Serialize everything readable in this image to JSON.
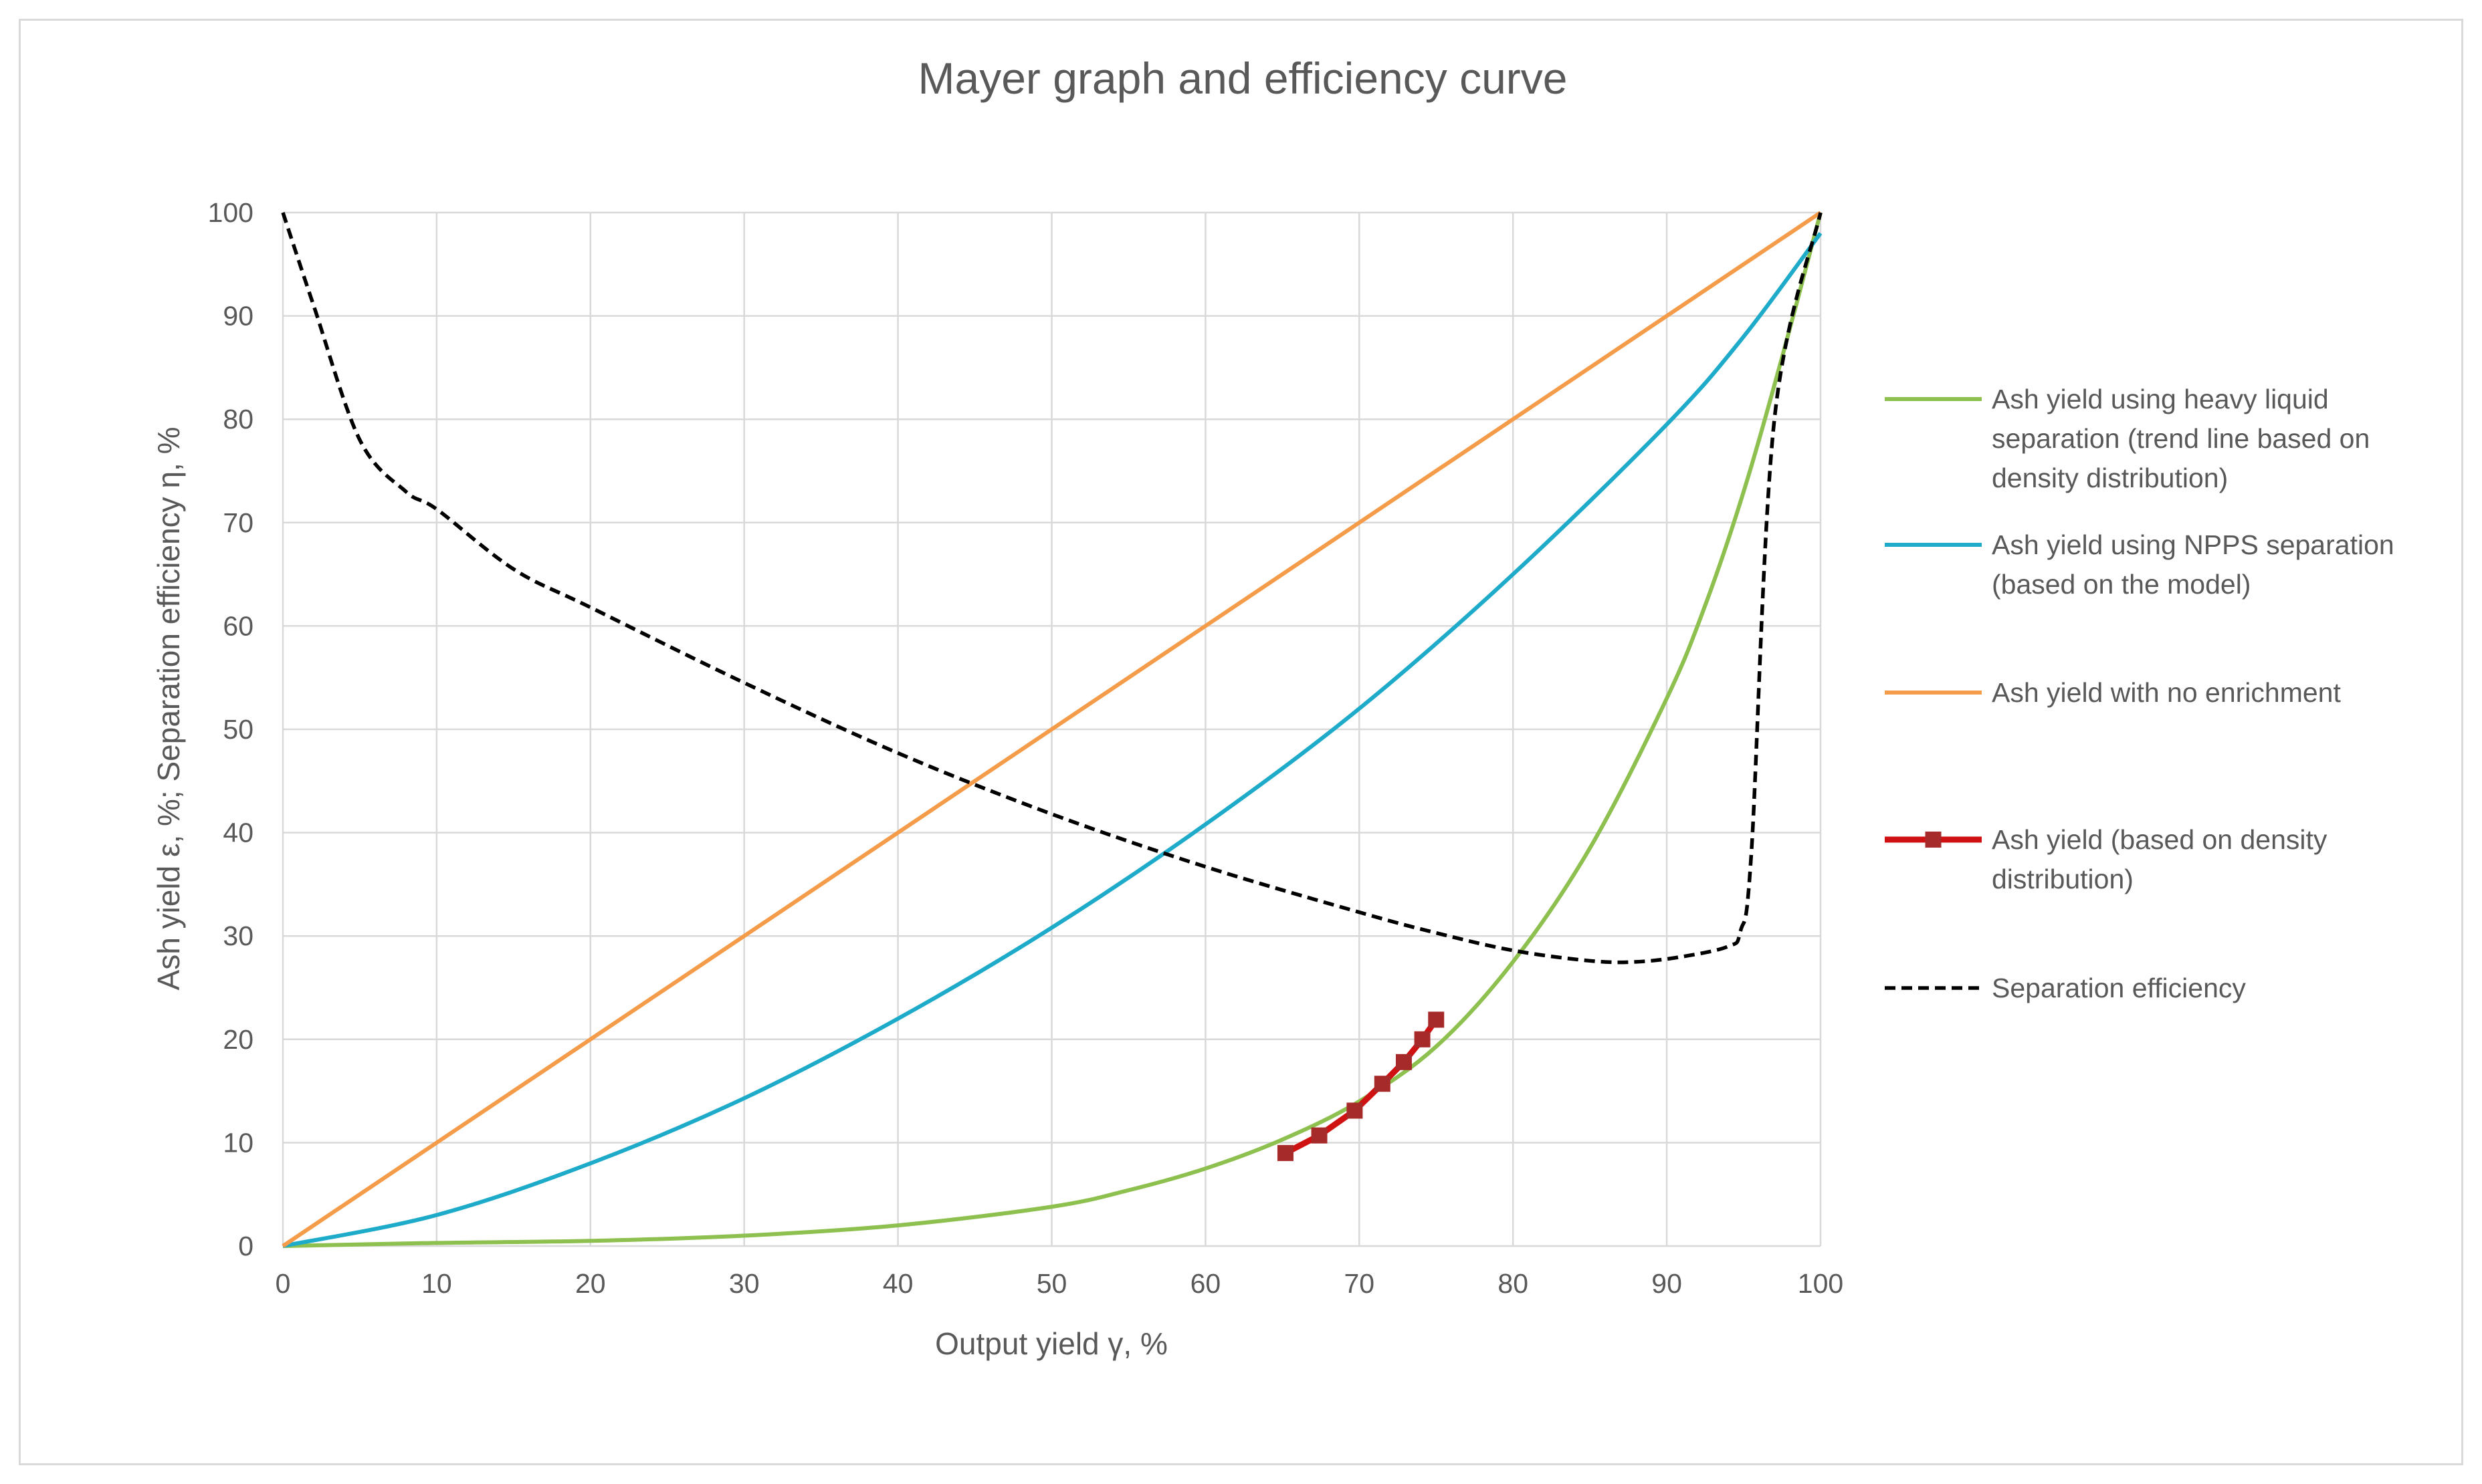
{
  "chart_data": {
    "type": "line",
    "title": "Mayer graph and efficiency curve",
    "xlabel": "Output yield γ, %",
    "ylabel": "Ash yield ε, %; Separation efficiency η, %",
    "xlim": [
      0,
      100
    ],
    "ylim": [
      0,
      100
    ],
    "x_ticks": [
      "0",
      "10",
      "20",
      "30",
      "40",
      "50",
      "60",
      "70",
      "80",
      "90",
      "100"
    ],
    "y_ticks": [
      "0",
      "10",
      "20",
      "30",
      "40",
      "50",
      "60",
      "70",
      "80",
      "90",
      "100"
    ],
    "grid": true,
    "legend_position": "right",
    "series": [
      {
        "name": "heavy",
        "legend_lines": [
          "Ash yield using heavy liquid",
          "separation (trend line based on",
          "density distribution)"
        ],
        "color": "#8dc04f",
        "style": "solid",
        "x": [
          0,
          10,
          20,
          30,
          40,
          50,
          55,
          60,
          65,
          70,
          75,
          80,
          85,
          90,
          92.5,
          95,
          97.5,
          100
        ],
        "y": [
          0,
          0.3,
          0.5,
          1,
          2,
          3.8,
          5.4,
          7.5,
          10.3,
          14,
          19.3,
          27.5,
          38.5,
          53,
          62,
          73,
          86,
          100
        ]
      },
      {
        "name": "npps",
        "legend_lines": [
          "Ash yield using NPPS separation",
          "(based on the model)"
        ],
        "color": "#1eabca",
        "style": "solid",
        "x": [
          0,
          10,
          20,
          30,
          40,
          50,
          60,
          70,
          80,
          90,
          95,
          100
        ],
        "y": [
          0,
          3,
          8,
          14.3,
          22,
          30.8,
          40.8,
          52,
          65,
          79.5,
          88,
          98
        ]
      },
      {
        "name": "noenrich",
        "legend_lines": [
          "Ash yield with no enrichment"
        ],
        "color": "#f59c4a",
        "style": "solid",
        "x": [
          0,
          100
        ],
        "y": [
          0,
          100
        ]
      },
      {
        "name": "density",
        "legend_lines": [
          "Ash yield (based on density",
          "distribution)"
        ],
        "color": "#cf1111",
        "marker_color": "#a62a2a",
        "style": "solid-markers",
        "x": [
          65.2,
          67.4,
          69.7,
          71.5,
          72.9,
          74.1,
          75
        ],
        "y": [
          9,
          10.7,
          13.1,
          15.7,
          17.8,
          20,
          21.9
        ]
      },
      {
        "name": "efficiency",
        "legend_lines": [
          "Separation efficiency"
        ],
        "color": "#000000",
        "style": "dashed",
        "x": [
          0,
          2,
          5,
          8,
          10,
          15,
          20,
          30,
          40,
          50,
          60,
          70,
          75,
          80,
          85,
          88,
          91,
          94,
          94.8,
          95.5,
          97,
          100
        ],
        "y": [
          100,
          91,
          78,
          73,
          71.3,
          65.5,
          61.8,
          54.5,
          47.7,
          41.8,
          36.7,
          32.3,
          30.3,
          28.6,
          27.6,
          27.5,
          28,
          29,
          30.5,
          38,
          80,
          100
        ]
      }
    ]
  }
}
